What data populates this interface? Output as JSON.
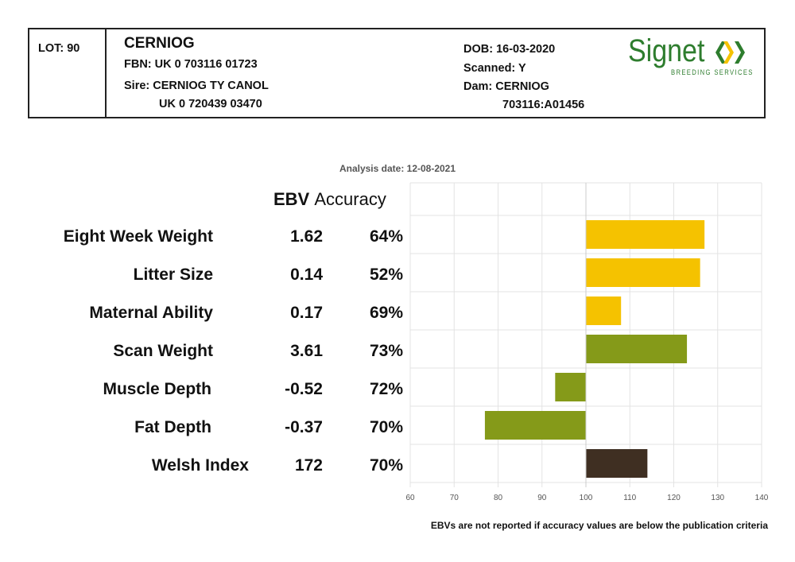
{
  "header": {
    "lot": "LOT: 90",
    "name": "CERNIOG",
    "fbn": "FBN: UK 0 703116 01723",
    "sire_label": "Sire: CERNIOG TY CANOL",
    "sire_id": "UK 0 720439 03470",
    "dob": "DOB: 16-03-2020",
    "scanned": "Scanned: Y",
    "dam_label": "Dam: CERNIOG",
    "dam_id": "703116:A01456",
    "logo_text": "Signet",
    "logo_sub": "BREEDING SERVICES"
  },
  "analysis_date": "Analysis date: 12-08-2021",
  "columns": {
    "ebv": "EBV",
    "accuracy": "Accuracy"
  },
  "note": "EBVs are not reported if accuracy values are below the publication criteria",
  "colors": {
    "yellow": "#f5c200",
    "green": "#859a19",
    "brown": "#3f2f22",
    "grid": "#e3e3e3",
    "axis_line": "#cccccc"
  },
  "chart_data": {
    "type": "bar",
    "orientation": "horizontal",
    "baseline": 100,
    "xlim": [
      60,
      140
    ],
    "xticks": [
      60,
      70,
      80,
      90,
      100,
      110,
      120,
      130,
      140
    ],
    "grid": true,
    "categories": [
      "Eight Week Weight",
      "Litter Size",
      "Maternal Ability",
      "Scan Weight",
      "Muscle Depth",
      "Fat Depth",
      "Welsh Index"
    ],
    "ebv": [
      "1.62",
      "0.14",
      "0.17",
      "3.61",
      "-0.52",
      "-0.37",
      "172"
    ],
    "accuracy": [
      "64%",
      "52%",
      "69%",
      "73%",
      "72%",
      "70%",
      "70%"
    ],
    "values": [
      127,
      126,
      108,
      123,
      93,
      77,
      114
    ],
    "bar_colors": [
      "yellow",
      "yellow",
      "yellow",
      "green",
      "green",
      "green",
      "brown"
    ]
  }
}
